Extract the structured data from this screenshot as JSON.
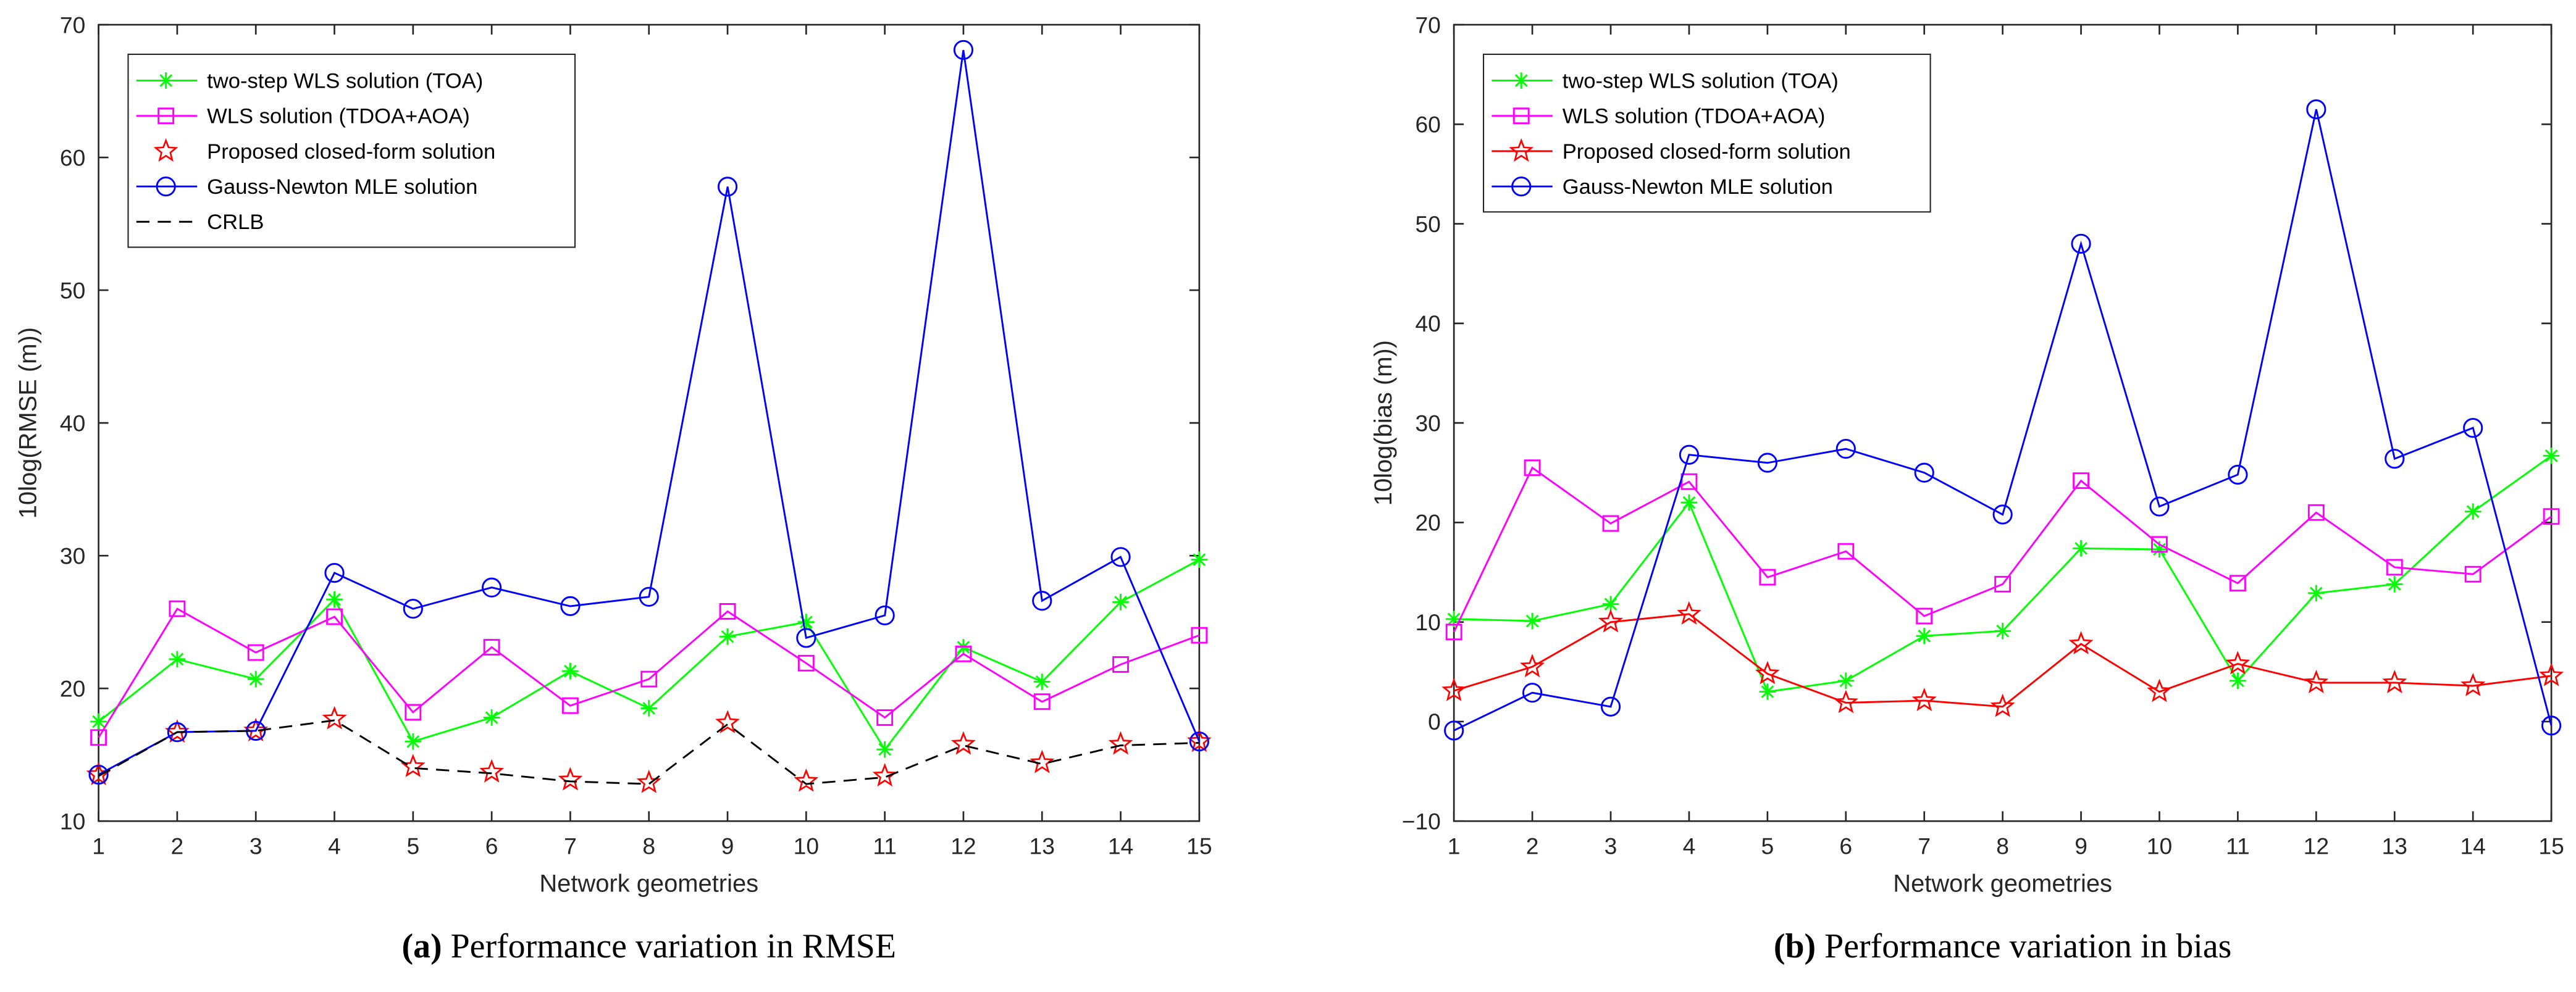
{
  "chart_data": [
    {
      "type": "line",
      "caption_bold": "(a)",
      "caption": " Performance variation in RMSE",
      "xlabel": "Network geometries",
      "ylabel": "10log(RMSE (m))",
      "xlim": [
        1,
        15
      ],
      "ylim": [
        10,
        70
      ],
      "x": [
        1,
        2,
        3,
        4,
        5,
        6,
        7,
        8,
        9,
        10,
        11,
        12,
        13,
        14,
        15
      ],
      "yticks": [
        10,
        20,
        30,
        40,
        50,
        60,
        70
      ],
      "legend_position": "top-left",
      "series": [
        {
          "name": "two-step WLS solution (TOA)",
          "color": "#00ff00",
          "marker": "asterisk",
          "dash": "",
          "values": [
            17.5,
            22.2,
            20.7,
            26.7,
            16.0,
            17.8,
            21.3,
            18.5,
            23.9,
            25.0,
            15.4,
            23.1,
            20.5,
            26.5,
            29.7
          ]
        },
        {
          "name": "WLS solution (TDOA+AOA)",
          "color": "#ff00ff",
          "marker": "square",
          "dash": "",
          "values": [
            16.3,
            26.0,
            22.7,
            25.4,
            18.2,
            23.1,
            18.7,
            20.7,
            25.8,
            21.9,
            17.8,
            22.6,
            19.0,
            21.8,
            24.0
          ]
        },
        {
          "name": "Proposed closed-form solution",
          "color": "#ff0000",
          "marker": "star",
          "dash": "none",
          "values": [
            13.5,
            16.7,
            16.8,
            17.7,
            14.1,
            13.7,
            13.1,
            12.9,
            17.4,
            13.0,
            13.4,
            15.8,
            14.4,
            15.8,
            16.0
          ]
        },
        {
          "name": "Gauss-Newton MLE solution",
          "color": "#0000ff",
          "marker": "circle",
          "dash": "",
          "values": [
            13.5,
            16.7,
            16.8,
            28.7,
            26.0,
            27.6,
            26.2,
            26.9,
            57.8,
            23.8,
            25.5,
            68.1,
            26.6,
            29.9,
            16.0
          ]
        },
        {
          "name": "CRLB",
          "color": "#000000",
          "marker": "none",
          "dash": "8,5",
          "values": [
            13.4,
            16.7,
            16.8,
            17.6,
            14.0,
            13.6,
            13.0,
            12.8,
            17.3,
            12.8,
            13.3,
            15.7,
            14.3,
            15.7,
            15.9
          ]
        }
      ]
    },
    {
      "type": "line",
      "caption_bold": "(b)",
      "caption": " Performance variation in bias",
      "xlabel": "Network geometries",
      "ylabel": "10log(bias (m))",
      "xlim": [
        1,
        15
      ],
      "ylim": [
        -10,
        70
      ],
      "x": [
        1,
        2,
        3,
        4,
        5,
        6,
        7,
        8,
        9,
        10,
        11,
        12,
        13,
        14,
        15
      ],
      "yticks": [
        -10,
        0,
        10,
        20,
        30,
        40,
        50,
        60,
        70
      ],
      "legend_position": "top-left",
      "series": [
        {
          "name": "two-step WLS solution (TOA)",
          "color": "#00ff00",
          "marker": "asterisk",
          "dash": "",
          "values": [
            10.3,
            10.1,
            11.8,
            22.0,
            3.0,
            4.1,
            8.6,
            9.1,
            17.4,
            17.3,
            4.1,
            12.9,
            13.8,
            21.1,
            26.7
          ]
        },
        {
          "name": "WLS solution (TDOA+AOA)",
          "color": "#ff00ff",
          "marker": "square",
          "dash": "",
          "values": [
            9.0,
            25.5,
            19.9,
            24.1,
            14.5,
            17.1,
            10.6,
            13.8,
            24.2,
            17.8,
            13.9,
            21.0,
            15.5,
            14.8,
            20.6
          ]
        },
        {
          "name": "Proposed closed-form solution",
          "color": "#ff0000",
          "marker": "star",
          "dash": "",
          "values": [
            3.1,
            5.5,
            10.0,
            10.8,
            4.8,
            1.9,
            2.1,
            1.5,
            7.8,
            3.0,
            5.8,
            3.9,
            3.9,
            3.6,
            4.6
          ]
        },
        {
          "name": "Gauss-Newton MLE solution",
          "color": "#0000ff",
          "marker": "circle",
          "dash": "",
          "values": [
            -0.9,
            2.9,
            1.5,
            26.8,
            26.0,
            27.4,
            25.0,
            20.8,
            48.0,
            21.6,
            24.8,
            61.5,
            26.4,
            29.5,
            -0.4
          ]
        }
      ]
    }
  ]
}
